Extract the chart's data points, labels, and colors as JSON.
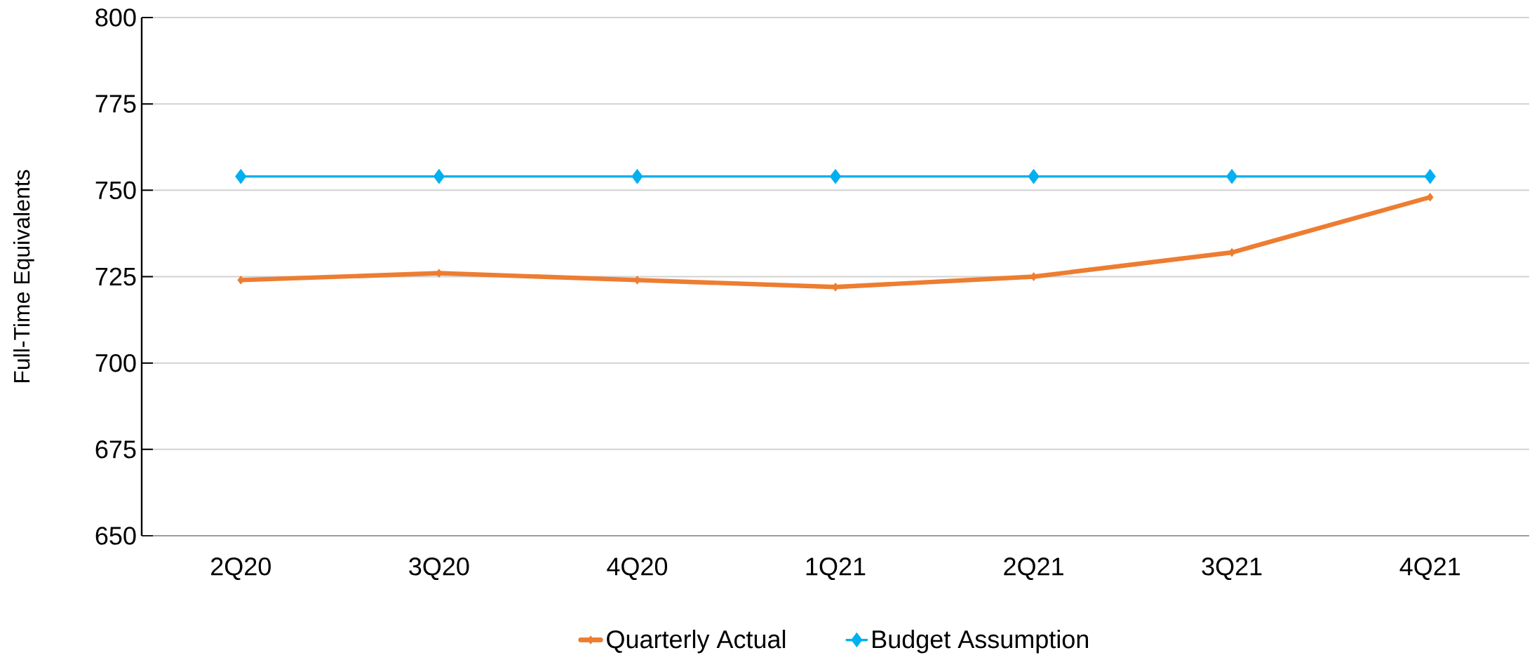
{
  "chart_data": {
    "type": "line",
    "ylabel": "Full-Time Equivalents",
    "categories": [
      "2Q20",
      "3Q20",
      "4Q20",
      "1Q21",
      "2Q21",
      "3Q21",
      "4Q21"
    ],
    "series": [
      {
        "name": "Quarterly Actual",
        "color": "#ed7d31",
        "values": [
          724,
          726,
          724,
          722,
          725,
          732,
          748
        ],
        "marker": "diamond"
      },
      {
        "name": "Budget Assumption",
        "color": "#00b0f0",
        "values": [
          754,
          754,
          754,
          754,
          754,
          754,
          754
        ],
        "marker": "diamond"
      }
    ],
    "ylim": [
      650,
      800
    ],
    "yticks": [
      650,
      675,
      700,
      725,
      750,
      775,
      800
    ],
    "grid": "y",
    "legend": "bottom",
    "line_style": "solid"
  }
}
